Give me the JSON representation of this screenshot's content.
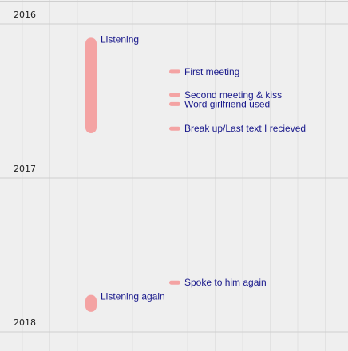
{
  "chart_data": {
    "type": "timeline",
    "colors": {
      "background": "#efefef",
      "bar": "#f4a3a3",
      "label": "#1a1a8c",
      "year_text": "#222222",
      "year_line": "#cfcfcf",
      "grid": "#e2e2e2"
    },
    "years": [
      "2016",
      "2017",
      "2018"
    ],
    "events": [
      {
        "label": "Listening",
        "start": 2016.09,
        "end": 2016.71,
        "lane": 0
      },
      {
        "label": "First meeting",
        "start": 2016.31,
        "end": 2016.31,
        "lane": 2
      },
      {
        "label": "Second meeting & kiss",
        "start": 2016.46,
        "end": 2016.46,
        "lane": 2
      },
      {
        "label": "Word girlfriend used",
        "start": 2016.52,
        "end": 2016.52,
        "lane": 3
      },
      {
        "label": "Break up/Last text I recieved",
        "start": 2016.68,
        "end": 2016.68,
        "lane": 3
      },
      {
        "label": "Spoke to him again",
        "start": 2017.68,
        "end": 2017.68,
        "lane": 3
      },
      {
        "label": "Listening again",
        "start": 2017.76,
        "end": 2017.87,
        "lane": 0
      }
    ]
  }
}
